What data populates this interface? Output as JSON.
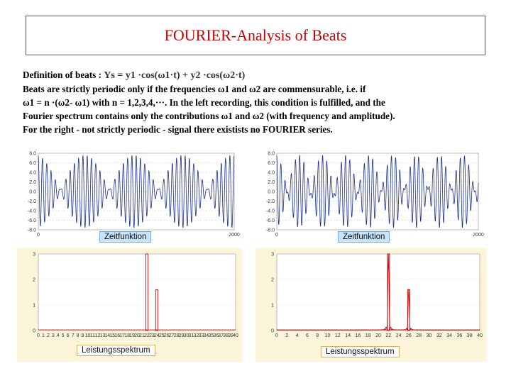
{
  "title": "FOURIER-Analysis of Beats",
  "definition": {
    "prefix": "Definition of beats : ",
    "formula": "Ys = y1 ·cos(ω1·t) + y2 ·cos(ω2·t)"
  },
  "paragraph": [
    "Beats are strictly periodic only if the frequencies ω1 and ω2 are commensurable, i.e. if",
    "ω1 = n ·(ω2- ω1) with n = 1,2,3,4,···. In the left recording, this condition is fulfilled, and the",
    "Fourier spectrum contains only the contributions  ω1 and ω2 (with frequency and amplitude).",
    "For the right - not strictly periodic - signal there existists no FOURIER series."
  ],
  "panels": {
    "left_time": {
      "label": "Zeitfunktion",
      "y_ticks": [
        "8.0",
        "6.0",
        "4.0",
        "2.0",
        "0.0",
        "-2.0",
        "-4.0",
        "-6.0",
        "-8.0"
      ],
      "x_ticks": [
        "0",
        "2000"
      ]
    },
    "left_spectrum": {
      "label": "Leistungsspektrum",
      "y_ticks": [
        "3",
        "2",
        "1",
        "0"
      ],
      "x_ticks": [
        "0",
        "1",
        "2",
        "3",
        "4",
        "5",
        "6",
        "7",
        "8",
        "9",
        "10",
        "11",
        "12",
        "13",
        "14",
        "15",
        "16",
        "17",
        "18",
        "19",
        "20",
        "21",
        "22",
        "23",
        "24",
        "25",
        "26",
        "27",
        "28",
        "29",
        "30",
        "31",
        "32",
        "33",
        "34",
        "35",
        "36",
        "37",
        "38",
        "39",
        "40"
      ],
      "peaks": [
        {
          "f": 22,
          "power": 3.0
        },
        {
          "f": 24,
          "power": 1.6
        }
      ]
    },
    "right_time": {
      "label": "Zeitfunktion",
      "y_ticks": [
        "8.0",
        "6.0",
        "4.0",
        "2.0",
        "0.0",
        "-2.0",
        "-4.0",
        "-6.0",
        "-8.0"
      ],
      "x_ticks": [
        "0",
        "2000"
      ]
    },
    "right_spectrum": {
      "label": "Leistungsspektrum",
      "y_ticks": [
        "3",
        "2",
        "1",
        "0"
      ],
      "x_ticks": [
        "0",
        "2",
        "4",
        "6",
        "8",
        "10",
        "12",
        "14",
        "16",
        "18",
        "20",
        "22",
        "24",
        "26",
        "28",
        "30",
        "32",
        "34",
        "36",
        "38",
        "40"
      ],
      "peaks": [
        {
          "f": 22,
          "power": 3.0
        },
        {
          "f": 26,
          "power": 1.6
        }
      ]
    }
  },
  "colors": {
    "title": "#cc0000",
    "signal": "#1a2f8a",
    "spectrum": "#cc0000"
  }
}
